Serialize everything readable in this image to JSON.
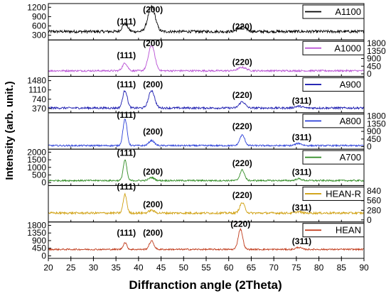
{
  "chart_data": {
    "type": "line",
    "xlabel": "Diffranction angle (2Theta)",
    "ylabel": "Intensity (arb. unit.)",
    "xlim": [
      20,
      90
    ],
    "xticks": [
      20,
      25,
      30,
      35,
      40,
      45,
      50,
      55,
      60,
      65,
      70,
      75,
      80,
      85,
      90
    ],
    "grid": false,
    "panels": [
      {
        "name": "A1100",
        "color": "#000000",
        "tick_side": "left",
        "ylim": [
          150,
          1320
        ],
        "yticks": [
          300,
          600,
          900,
          1200
        ],
        "baseline": 420,
        "noise": 45,
        "peaks": [
          {
            "x": 37,
            "h": 250,
            "w": 0.6
          },
          {
            "x": 42.9,
            "h": 800,
            "w": 0.8
          },
          {
            "x": 63,
            "h": 150,
            "w": 0.9
          }
        ],
        "labels": [
          {
            "text": "(111)",
            "x": 37.3,
            "y": 740
          },
          {
            "text": "(200)",
            "x": 43.2,
            "y": 1130
          },
          {
            "text": "(220)",
            "x": 63.0,
            "y": 580
          }
        ]
      },
      {
        "name": "A1000",
        "color": "#b84fd4",
        "tick_side": "right",
        "ylim": [
          -150,
          2000
        ],
        "yticks": [
          0,
          450,
          900,
          1350,
          1800
        ],
        "baseline": 180,
        "noise": 50,
        "peaks": [
          {
            "x": 37,
            "h": 450,
            "w": 0.55
          },
          {
            "x": 42.9,
            "h": 1500,
            "w": 0.7
          },
          {
            "x": 63,
            "h": 200,
            "w": 0.9
          }
        ],
        "labels": [
          {
            "text": "(111)",
            "x": 37.3,
            "y": 1100
          },
          {
            "text": "(200)",
            "x": 43.2,
            "y": 1800
          },
          {
            "text": "(220)",
            "x": 63.0,
            "y": 700
          }
        ]
      },
      {
        "name": "A900",
        "color": "#1c1cb0",
        "tick_side": "left",
        "ylim": [
          200,
          1650
        ],
        "yticks": [
          370,
          740,
          1110,
          1480
        ],
        "baseline": 390,
        "noise": 40,
        "peaks": [
          {
            "x": 37,
            "h": 700,
            "w": 0.5
          },
          {
            "x": 42.9,
            "h": 700,
            "w": 0.65
          },
          {
            "x": 63,
            "h": 250,
            "w": 0.65
          },
          {
            "x": 75.5,
            "h": 70,
            "w": 0.8
          }
        ],
        "labels": [
          {
            "text": "(111)",
            "x": 37.3,
            "y": 1330
          },
          {
            "text": "(200)",
            "x": 43.2,
            "y": 1330
          },
          {
            "text": "(220)",
            "x": 63.0,
            "y": 900
          },
          {
            "text": "(311)",
            "x": 76.2,
            "y": 680
          }
        ]
      },
      {
        "name": "A800",
        "color": "#2a3fd8",
        "tick_side": "right",
        "ylim": [
          -150,
          2000
        ],
        "yticks": [
          0,
          450,
          900,
          1350,
          1800
        ],
        "baseline": 60,
        "noise": 45,
        "peaks": [
          {
            "x": 37,
            "h": 1560,
            "w": 0.45
          },
          {
            "x": 42.9,
            "h": 300,
            "w": 0.6
          },
          {
            "x": 63,
            "h": 620,
            "w": 0.55
          },
          {
            "x": 75.5,
            "h": 130,
            "w": 0.7
          }
        ],
        "labels": [
          {
            "text": "(111)",
            "x": 37.3,
            "y": 1870
          },
          {
            "text": "(200)",
            "x": 43.2,
            "y": 880
          },
          {
            "text": "(220)",
            "x": 63.0,
            "y": 1190
          },
          {
            "text": "(311)",
            "x": 76.2,
            "y": 540
          }
        ]
      },
      {
        "name": "A700",
        "color": "#2e8b22",
        "tick_side": "left",
        "ylim": [
          -200,
          2200
        ],
        "yticks": [
          0,
          500,
          1000,
          1500,
          2000
        ],
        "baseline": 130,
        "noise": 50,
        "peaks": [
          {
            "x": 37,
            "h": 1350,
            "w": 0.4
          },
          {
            "x": 42.9,
            "h": 200,
            "w": 0.6
          },
          {
            "x": 63,
            "h": 700,
            "w": 0.5
          },
          {
            "x": 75.5,
            "h": 120,
            "w": 0.6
          }
        ],
        "labels": [
          {
            "text": "(111)",
            "x": 37.3,
            "y": 1950
          },
          {
            "text": "(200)",
            "x": 43.2,
            "y": 700
          },
          {
            "text": "(220)",
            "x": 63.0,
            "y": 1280
          },
          {
            "text": "(311)",
            "x": 76.2,
            "y": 680
          }
        ]
      },
      {
        "name": "HEAN-R",
        "color": "#d0a010",
        "tick_side": "right",
        "ylim": [
          -60,
          1000
        ],
        "yticks": [
          0,
          280,
          560,
          840
        ],
        "baseline": 200,
        "noise": 30,
        "peaks": [
          {
            "x": 37,
            "h": 540,
            "w": 0.4
          },
          {
            "x": 42.9,
            "h": 80,
            "w": 0.6
          },
          {
            "x": 63,
            "h": 300,
            "w": 0.55
          },
          {
            "x": 75.5,
            "h": 40,
            "w": 0.6
          }
        ],
        "labels": [
          {
            "text": "(111)",
            "x": 37.3,
            "y": 970
          },
          {
            "text": "(200)",
            "x": 43.2,
            "y": 450
          },
          {
            "text": "(220)",
            "x": 63.0,
            "y": 720
          },
          {
            "text": "(311)",
            "x": 76.2,
            "y": 360
          }
        ]
      },
      {
        "name": "HEAN",
        "color": "#c03a1a",
        "tick_side": "left",
        "ylim": [
          -150,
          2000
        ],
        "yticks": [
          0,
          450,
          900,
          1350,
          1800
        ],
        "baseline": 380,
        "noise": 45,
        "peaks": [
          {
            "x": 37,
            "h": 400,
            "w": 0.4
          },
          {
            "x": 42.9,
            "h": 500,
            "w": 0.5
          },
          {
            "x": 62.6,
            "h": 1200,
            "w": 0.5
          },
          {
            "x": 75.5,
            "h": 120,
            "w": 0.6
          }
        ],
        "labels": [
          {
            "text": "(111)",
            "x": 37.3,
            "y": 1350
          },
          {
            "text": "(200)",
            "x": 43.2,
            "y": 1350
          },
          {
            "text": "(220)",
            "x": 62.6,
            "y": 1880
          },
          {
            "text": "(311)",
            "x": 76.2,
            "y": 850
          }
        ]
      }
    ]
  }
}
